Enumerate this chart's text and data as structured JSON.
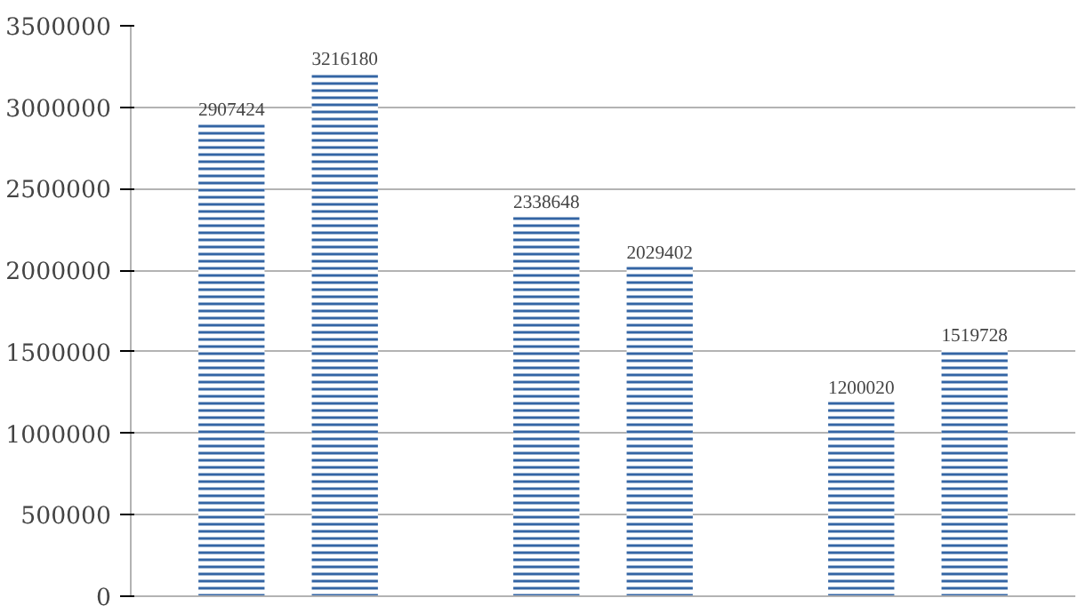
{
  "chart_data": {
    "type": "bar",
    "categories": [
      null,
      null,
      null
    ],
    "series": [
      {
        "color": "#3465a4",
        "values": [
          2907424,
          2338648,
          1200020
        ]
      },
      {
        "color": "#3465a4",
        "values": [
          3216180,
          2029402,
          1519728
        ]
      }
    ],
    "ylim": [
      0,
      3500000
    ],
    "yticks": [
      0,
      500000,
      1000000,
      1500000,
      2000000,
      2500000,
      3000000,
      3500000
    ],
    "grid": "y",
    "data_labels": true
  }
}
